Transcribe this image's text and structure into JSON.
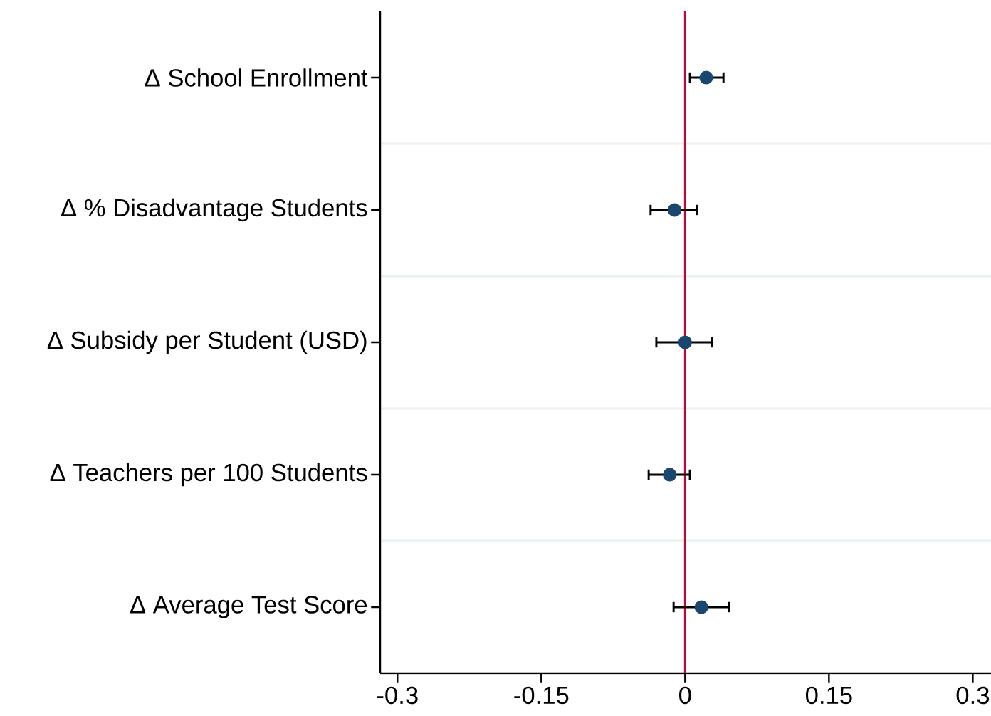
{
  "chart_data": {
    "type": "scatter",
    "orientation": "horizontal",
    "categories": [
      "Δ School Enrollment",
      "Δ % Disadvantage Students",
      "Δ Subsidy per Student (USD)",
      "Δ Teachers per 100 Students",
      "Δ Average Test Score"
    ],
    "values": [
      0.022,
      -0.011,
      0.0,
      -0.016,
      0.017
    ],
    "errors": [
      [
        0.005,
        0.04
      ],
      [
        -0.036,
        0.012
      ],
      [
        -0.03,
        0.028
      ],
      [
        -0.038,
        0.005
      ],
      [
        -0.012,
        0.046
      ]
    ],
    "color": "#1a476f",
    "marker": "circle",
    "xlim": [
      -0.318,
      0.319
    ],
    "xticks": [
      -0.3,
      -0.15,
      0,
      0.15,
      0.3
    ],
    "ref_lines": [
      {
        "axis": "x",
        "value": 0,
        "color": "#c10534"
      }
    ],
    "grid": "y"
  }
}
